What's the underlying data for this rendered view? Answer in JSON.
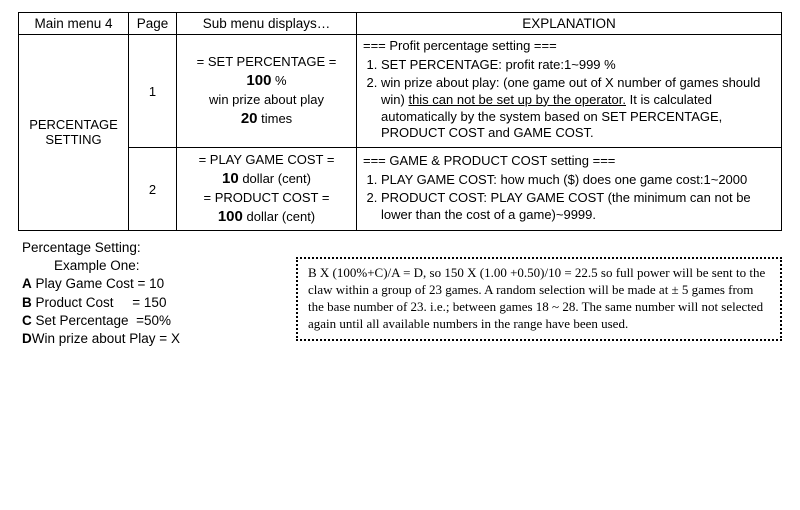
{
  "header": {
    "col1": "Main menu   4",
    "col2": "Page",
    "col3": "Sub menu displays…",
    "col4": "EXPLANATION"
  },
  "row_label": "PERCENTAGE SETTING",
  "page1": {
    "num": "1",
    "sub_l1": "= SET PERCENTAGE =",
    "sub_v1": "100",
    "sub_u1": "%",
    "sub_l2": "win prize about play",
    "sub_v2": "20",
    "sub_u2": "times",
    "exp_title": "=== Profit percentage setting ===",
    "exp_li1": "SET PERCENTAGE: profit rate:1~999 %",
    "exp_li2a": "win prize about play: (one game out of X number of games should win) ",
    "exp_li2_u": "this can not be set up by the operator.",
    "exp_li2b": " It is calculated automatically by the system based on SET PERCENTAGE, PRODUCT COST and GAME COST."
  },
  "page2": {
    "num": "2",
    "sub_l1": "= PLAY GAME COST =",
    "sub_v1": "10",
    "sub_u1": "dollar (cent)",
    "sub_l2": "= PRODUCT COST =",
    "sub_v2": "100",
    "sub_u2": "dollar (cent)",
    "exp_title": "=== GAME & PRODUCT COST setting ===",
    "exp_li1": "PLAY GAME COST: how much ($) does one game cost:1~2000",
    "exp_li2": "PRODUCT COST: PLAY GAME COST (the minimum can not be lower than the cost of a game)~9999."
  },
  "example": {
    "title": "Percentage Setting:",
    "subtitle": "Example One:",
    "a_label": "A",
    "a_text": " Play Game Cost = 10",
    "b_label": "B",
    "b_text": " Product Cost     = 150",
    "c_label": "C",
    "c_text": " Set Percentage  =50%",
    "d_label": "D",
    "d_text": "Win prize about Play = X"
  },
  "formula": "B X (100%+C)/A = D, so 150 X (1.00 +0.50)/10 = 22.5 so full power will be sent to the claw within a group of 23 games. A random selection will be made at ± 5 games from the base number of 23. i.e.; between games 18 ~ 28. The same number will not selected again until all available numbers in the range have been used."
}
